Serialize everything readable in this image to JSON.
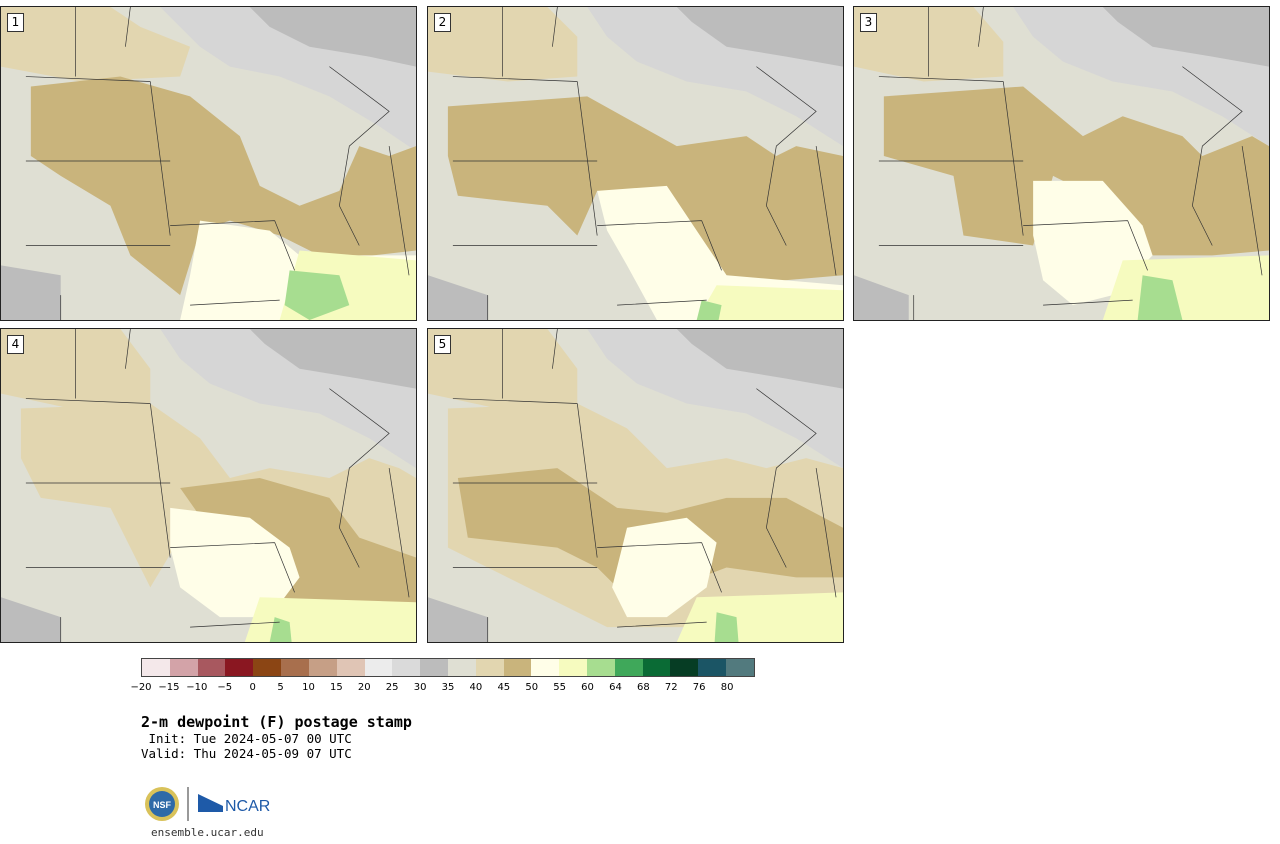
{
  "panels": [
    {
      "number": "1"
    },
    {
      "number": "2"
    },
    {
      "number": "3"
    },
    {
      "number": "4"
    },
    {
      "number": "5"
    }
  ],
  "colorbar": {
    "ticks": [
      "−20",
      "−15",
      "−10",
      "−5",
      "0",
      "5",
      "10",
      "15",
      "20",
      "25",
      "30",
      "35",
      "40",
      "45",
      "50",
      "55",
      "60",
      "64",
      "68",
      "72",
      "76",
      "80"
    ],
    "colors": [
      "#f4e8ea",
      "#d3a3a8",
      "#a8585f",
      "#8a1721",
      "#8b4514",
      "#a86f4d",
      "#c69f86",
      "#e0c5b5",
      "#ececec",
      "#dadada",
      "#bcbcbc",
      "#dfdfd3",
      "#e2d6b0",
      "#c9b47c",
      "#fffee8",
      "#f6fbbf",
      "#a7dd90",
      "#3fa85a",
      "#0a6b35",
      "#063d24",
      "#1b5565",
      "#527a7e"
    ]
  },
  "map_colors": {
    "dew_30_35": "#bcbcbc",
    "dew_25_30": "#d6d6d6",
    "dew_35_40": "#dfdfd3",
    "dew_40_45": "#e2d6b0",
    "dew_45_50": "#c9b47c",
    "dew_50_55": "#fffee8",
    "dew_55_60": "#f6fbbf",
    "dew_60_64": "#a7dd90"
  },
  "title": "2-m dewpoint (F) postage stamp",
  "init": " Init: Tue 2024-05-07 00 UTC",
  "valid": "Valid: Thu 2024-05-09 07 UTC",
  "logos": {
    "nsf": "NSF",
    "ncar": "NCAR"
  },
  "site": "ensemble.ucar.edu"
}
